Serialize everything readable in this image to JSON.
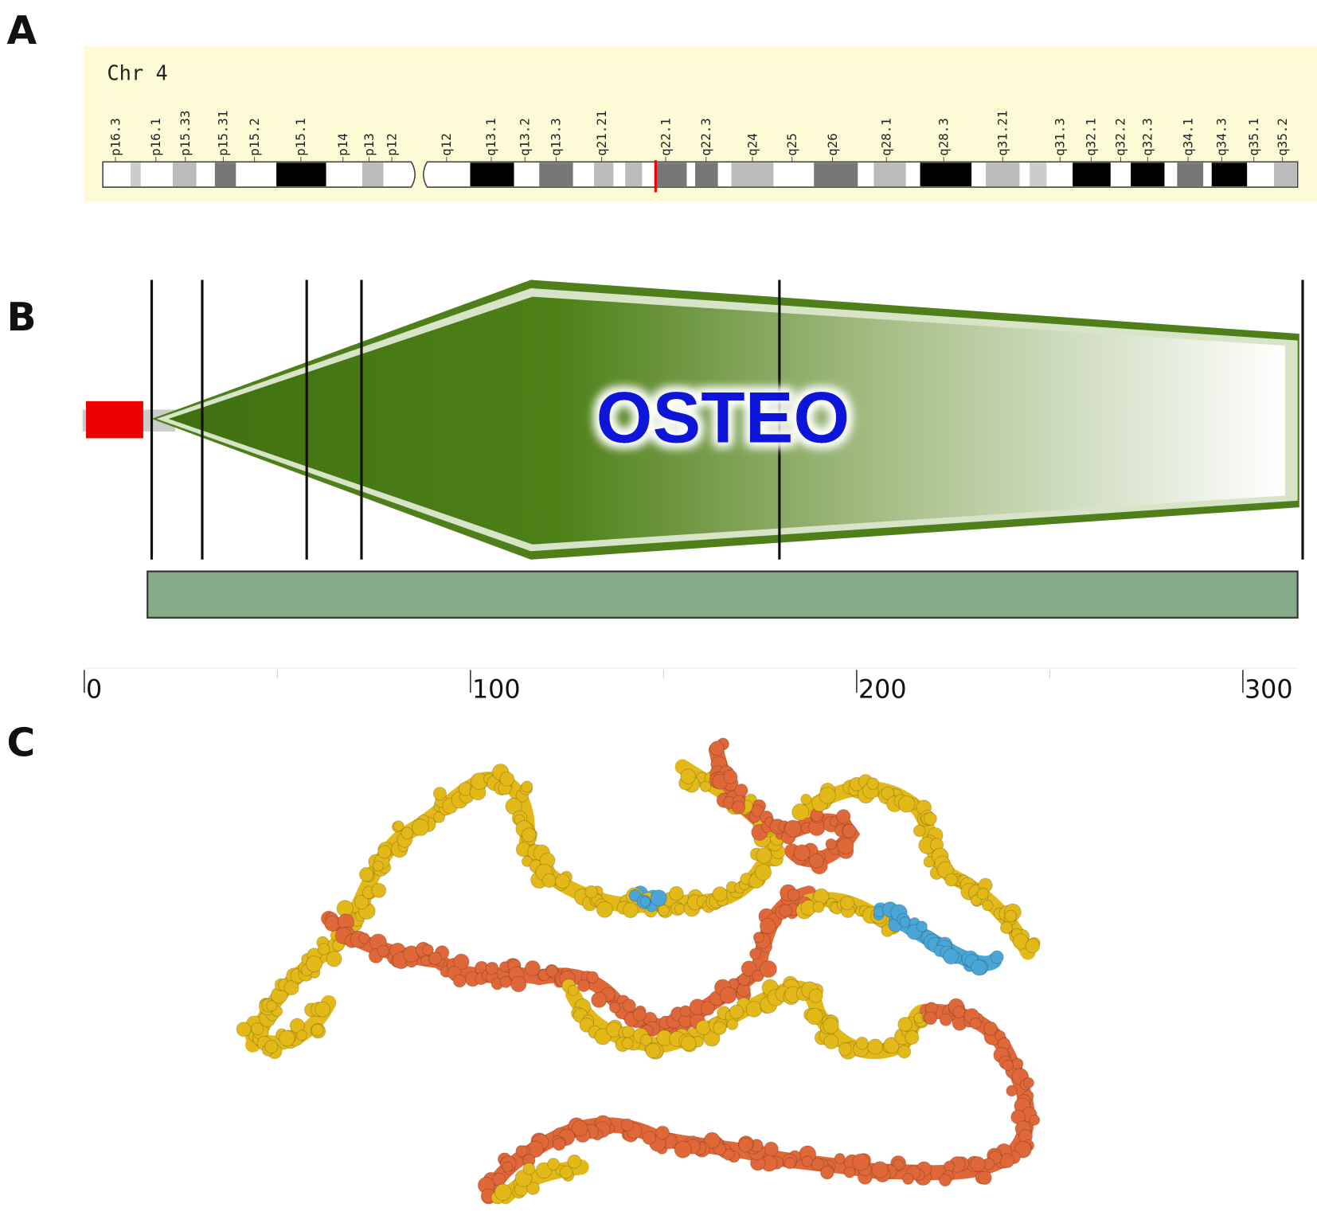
{
  "panels": {
    "a": {
      "label": "A",
      "chromosome": "Chr 4",
      "bands": [
        "p16.3",
        "p16.1",
        "p15.33",
        "p15.31",
        "p15.2",
        "p15.1",
        "p14",
        "p13",
        "p12",
        "q12",
        "q13.1",
        "q13.2",
        "q13.3",
        "q21.21",
        "q22.1",
        "q22.3",
        "q24",
        "q25",
        "q26",
        "q28.1",
        "q28.3",
        "q31.21",
        "q31.3",
        "q32.1",
        "q32.2",
        "q32.3",
        "q34.1",
        "q34.3",
        "q35.1",
        "q35.2"
      ]
    },
    "b": {
      "label": "B",
      "domain": "OSTEO",
      "axis_ticks": [
        0,
        100,
        200,
        300
      ]
    },
    "c": {
      "label": "C"
    }
  }
}
